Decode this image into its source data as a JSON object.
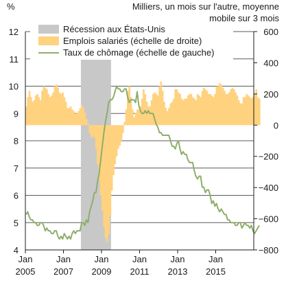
{
  "chart_data": {
    "type": "line",
    "left_axis_unit": "%",
    "right_axis_title": [
      "Milliers, un mois sur l'autre, moyenne",
      "mobile sur 3 mois"
    ],
    "left_axis": {
      "ylim": [
        4,
        12
      ],
      "ticks": [
        4,
        5,
        6,
        7,
        8,
        9,
        10,
        11,
        12
      ]
    },
    "right_axis": {
      "ylim": [
        -800,
        600
      ],
      "ticks": [
        600,
        400,
        200,
        0,
        -200,
        -400,
        -600,
        -800
      ],
      "tick_labels": [
        "600",
        "400",
        "200",
        "0",
        "−200",
        "−400",
        "−600",
        "−800"
      ]
    },
    "x_axis": {
      "xlim": [
        "2005-01",
        "2017-01"
      ],
      "ticks": [
        {
          "year": 2005,
          "label": [
            "Jan",
            "2005"
          ]
        },
        {
          "year": 2007,
          "label": [
            "Jan",
            "2007"
          ]
        },
        {
          "year": 2009,
          "label": [
            "Jan",
            "2009"
          ]
        },
        {
          "year": 2011,
          "label": [
            "Jan",
            "2011"
          ]
        },
        {
          "year": 2013,
          "label": [
            "Jan",
            "2013"
          ]
        },
        {
          "year": 2015,
          "label": [
            "Jan",
            "2015"
          ]
        }
      ]
    },
    "grid": "horizontal",
    "legend_placement": "top-left",
    "recession": {
      "name": "Récession aux États-Unis",
      "start": "2007-12",
      "end": "2009-06",
      "color": "#c8c8c8"
    },
    "series": [
      {
        "name": "Emplois salariés (échelle de droite)",
        "type": "bar",
        "axis": "right",
        "color": "#ffd27f",
        "start": "2005-01",
        "values": [
          120,
          180,
          220,
          180,
          150,
          160,
          190,
          200,
          180,
          160,
          220,
          250,
          240,
          230,
          200,
          180,
          190,
          210,
          250,
          260,
          240,
          210,
          200,
          210,
          180,
          150,
          110,
          110,
          120,
          100,
          90,
          70,
          80,
          90,
          110,
          130,
          110,
          80,
          40,
          10,
          -50,
          -80,
          -70,
          -80,
          -150,
          -250,
          -350,
          -450,
          -550,
          -650,
          -720,
          -750,
          -700,
          -580,
          -420,
          -320,
          -250,
          -200,
          -150,
          -130,
          -100,
          -50,
          20,
          100,
          220,
          250,
          180,
          100,
          50,
          80,
          100,
          100,
          120,
          170,
          230,
          200,
          150,
          120,
          120,
          160,
          200,
          210,
          200,
          190,
          250,
          280,
          220,
          150,
          110,
          90,
          110,
          140,
          150,
          170,
          230,
          230,
          210,
          200,
          170,
          160,
          170,
          170,
          190,
          200,
          200,
          180,
          170,
          160,
          200,
          190,
          180,
          220,
          240,
          230,
          220,
          200,
          200,
          190,
          180,
          200,
          250,
          250,
          270,
          260,
          240,
          220,
          200,
          200,
          210,
          230,
          240,
          230,
          210,
          190,
          160,
          140,
          140,
          180,
          180,
          200,
          190,
          180,
          170,
          180,
          200,
          230,
          180,
          170
        ]
      },
      {
        "name": "Taux de chômage (échelle de gauche)",
        "type": "line",
        "axis": "left",
        "color": "#8fad6b",
        "start": "2005-01",
        "values": [
          5.3,
          5.4,
          5.2,
          5.1,
          5.1,
          5.0,
          5.0,
          4.9,
          4.9,
          5.0,
          5.0,
          4.9,
          4.7,
          4.8,
          4.7,
          4.7,
          4.6,
          4.6,
          4.7,
          4.7,
          4.5,
          4.4,
          4.5,
          4.4,
          4.6,
          4.5,
          4.4,
          4.5,
          4.4,
          4.6,
          4.7,
          4.6,
          4.7,
          4.7,
          4.7,
          5.0,
          5.0,
          4.9,
          5.1,
          5.0,
          5.4,
          5.6,
          5.8,
          6.1,
          6.1,
          6.5,
          6.8,
          7.3,
          7.8,
          8.3,
          8.7,
          9.0,
          9.4,
          9.5,
          9.5,
          9.6,
          9.8,
          10.0,
          9.9,
          9.9,
          9.8,
          9.8,
          9.9,
          9.9,
          9.6,
          9.4,
          9.5,
          9.5,
          9.5,
          9.4,
          9.8,
          9.3,
          9.1,
          9.0,
          9.0,
          9.1,
          9.0,
          9.1,
          9.0,
          9.0,
          9.0,
          8.8,
          8.6,
          8.5,
          8.3,
          8.3,
          8.2,
          8.2,
          8.2,
          8.2,
          8.2,
          8.0,
          7.8,
          7.8,
          7.7,
          7.9,
          8.0,
          7.7,
          7.5,
          7.6,
          7.5,
          7.5,
          7.3,
          7.2,
          7.2,
          7.2,
          6.9,
          6.7,
          6.6,
          6.7,
          6.7,
          6.3,
          6.3,
          6.1,
          6.2,
          6.2,
          6.0,
          5.7,
          5.8,
          5.6,
          5.7,
          5.5,
          5.4,
          5.5,
          5.4,
          5.3,
          5.3,
          5.1,
          5.1,
          5.0,
          5.0,
          5.0,
          4.9,
          4.9,
          5.0,
          5.0,
          4.8,
          4.9,
          5.0,
          4.9,
          4.9,
          4.8,
          4.9,
          4.7,
          4.6,
          4.7,
          4.8,
          4.9
        ]
      }
    ]
  }
}
